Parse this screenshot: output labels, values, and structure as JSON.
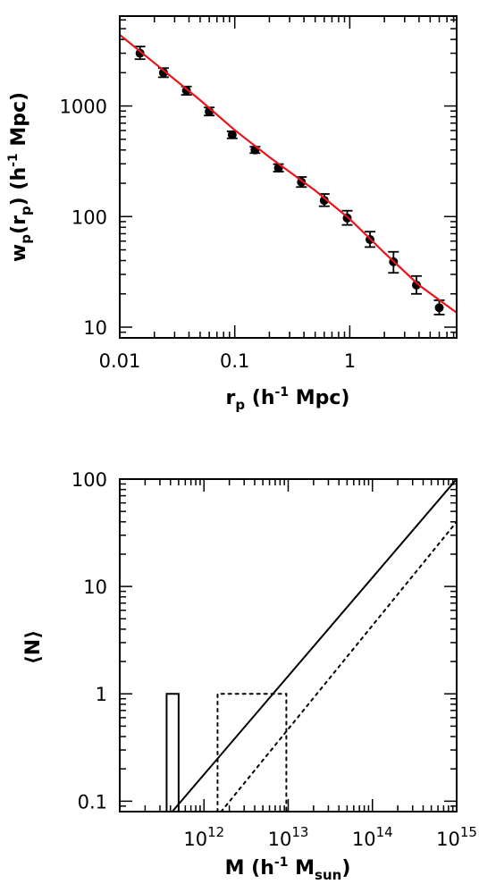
{
  "chart_data": [
    {
      "type": "scatter",
      "xlabel": "r_p (h^-1 Mpc)",
      "ylabel": "w_p(r_p) (h^-1 Mpc)",
      "x_scale": "log",
      "y_scale": "log",
      "xlim": [
        0.01,
        8.5
      ],
      "ylim": [
        8,
        6500
      ],
      "x_ticks": [
        "0.01",
        "0.1",
        "1"
      ],
      "y_ticks": [
        "10",
        "100",
        "1000"
      ],
      "series": [
        {
          "type": "scatter",
          "color": "#000000",
          "points": [
            {
              "x": 0.015,
              "y": 3000,
              "lo": 2650,
              "hi": 3450
            },
            {
              "x": 0.024,
              "y": 2000,
              "lo": 1820,
              "hi": 2200
            },
            {
              "x": 0.038,
              "y": 1380,
              "lo": 1260,
              "hi": 1500
            },
            {
              "x": 0.06,
              "y": 890,
              "lo": 820,
              "hi": 970
            },
            {
              "x": 0.095,
              "y": 550,
              "lo": 510,
              "hi": 590
            },
            {
              "x": 0.15,
              "y": 400,
              "lo": 375,
              "hi": 428
            },
            {
              "x": 0.24,
              "y": 275,
              "lo": 255,
              "hi": 298
            },
            {
              "x": 0.38,
              "y": 205,
              "lo": 185,
              "hi": 228
            },
            {
              "x": 0.6,
              "y": 140,
              "lo": 124,
              "hi": 160
            },
            {
              "x": 0.95,
              "y": 97,
              "lo": 84,
              "hi": 113
            },
            {
              "x": 1.5,
              "y": 62,
              "lo": 53,
              "hi": 73
            },
            {
              "x": 2.4,
              "y": 39,
              "lo": 31,
              "hi": 48
            },
            {
              "x": 3.8,
              "y": 24,
              "lo": 20,
              "hi": 29
            },
            {
              "x": 6.0,
              "y": 15,
              "lo": 13,
              "hi": 17.5
            }
          ]
        },
        {
          "type": "line",
          "color": "#e8141b",
          "points": [
            {
              "x": 0.01,
              "y": 4400
            },
            {
              "x": 0.02,
              "y": 2450
            },
            {
              "x": 0.05,
              "y": 1130
            },
            {
              "x": 0.1,
              "y": 605
            },
            {
              "x": 0.2,
              "y": 345
            },
            {
              "x": 0.5,
              "y": 172
            },
            {
              "x": 1.0,
              "y": 95
            },
            {
              "x": 2.0,
              "y": 47
            },
            {
              "x": 4.0,
              "y": 24
            },
            {
              "x": 8.5,
              "y": 13.5
            }
          ]
        }
      ]
    },
    {
      "type": "line",
      "xlabel": "M (h^-1 M_sun)",
      "ylabel": "⟨N⟩",
      "x_scale": "log",
      "y_scale": "log",
      "xlim": [
        100000000000.0,
        1000000000000000.0
      ],
      "ylim": [
        0.08,
        100
      ],
      "x_ticks": [
        {
          "base": "10",
          "exp": "12"
        },
        {
          "base": "10",
          "exp": "13"
        },
        {
          "base": "10",
          "exp": "14"
        },
        {
          "base": "10",
          "exp": "15"
        }
      ],
      "y_ticks": [
        "0.1",
        "1",
        "10",
        "100"
      ],
      "series": [
        {
          "style": "solid",
          "color": "#000000",
          "points": [
            {
              "x": 360000000000.0,
              "y": 0.08
            },
            {
              "x": 360000000000.0,
              "y": 1
            },
            {
              "x": 500000000000.0,
              "y": 1
            },
            {
              "x": 500000000000.0,
              "y": 0.08
            }
          ]
        },
        {
          "style": "solid",
          "color": "#000000",
          "points": [
            {
              "x": 420000000000.0,
              "y": 0.08
            },
            {
              "x": 1000000000000000.0,
              "y": 100
            }
          ]
        },
        {
          "style": "dotted",
          "color": "#000000",
          "points": [
            {
              "x": 1450000000000.0,
              "y": 0.08
            },
            {
              "x": 1450000000000.0,
              "y": 1
            },
            {
              "x": 9500000000000.0,
              "y": 1
            },
            {
              "x": 9500000000000.0,
              "y": 0.08
            }
          ]
        },
        {
          "style": "dotted",
          "color": "#000000",
          "points": [
            {
              "x": 1600000000000.0,
              "y": 0.08
            },
            {
              "x": 1000000000000000.0,
              "y": 40
            }
          ]
        }
      ]
    }
  ]
}
